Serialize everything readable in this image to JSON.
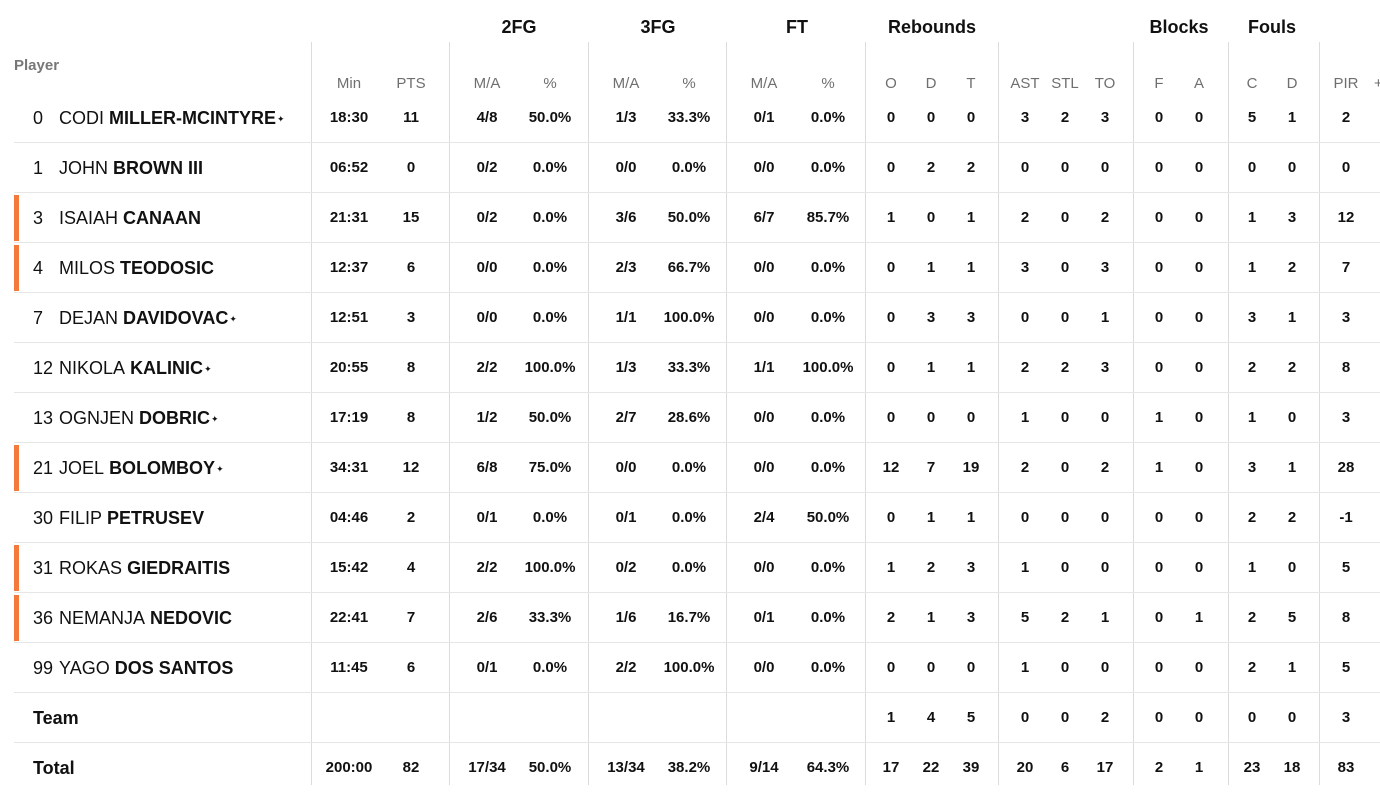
{
  "header": {
    "player_label": "Player",
    "groups": [
      "2FG",
      "3FG",
      "FT",
      "Rebounds",
      "Blocks",
      "Fouls"
    ],
    "columns": [
      "Min",
      "PTS",
      "M/A",
      "%",
      "M/A",
      "%",
      "M/A",
      "%",
      "O",
      "D",
      "T",
      "AST",
      "STL",
      "TO",
      "F",
      "A",
      "C",
      "D",
      "PIR"
    ],
    "more_indicator": "+"
  },
  "players": [
    {
      "num": "0",
      "first": "CODI",
      "last": "MILLER-MCINTYRE",
      "star": true,
      "bar": false,
      "stats": [
        "18:30",
        "11",
        "4/8",
        "50.0%",
        "1/3",
        "33.3%",
        "0/1",
        "0.0%",
        "0",
        "0",
        "0",
        "3",
        "2",
        "3",
        "0",
        "0",
        "5",
        "1",
        "2"
      ]
    },
    {
      "num": "1",
      "first": "JOHN",
      "last": "BROWN III",
      "star": false,
      "bar": false,
      "stats": [
        "06:52",
        "0",
        "0/2",
        "0.0%",
        "0/0",
        "0.0%",
        "0/0",
        "0.0%",
        "0",
        "2",
        "2",
        "0",
        "0",
        "0",
        "0",
        "0",
        "0",
        "0",
        "0"
      ]
    },
    {
      "num": "3",
      "first": "ISAIAH",
      "last": "CANAAN",
      "star": false,
      "bar": true,
      "stats": [
        "21:31",
        "15",
        "0/2",
        "0.0%",
        "3/6",
        "50.0%",
        "6/7",
        "85.7%",
        "1",
        "0",
        "1",
        "2",
        "0",
        "2",
        "0",
        "0",
        "1",
        "3",
        "12"
      ]
    },
    {
      "num": "4",
      "first": "MILOS",
      "last": "TEODOSIC",
      "star": false,
      "bar": true,
      "stats": [
        "12:37",
        "6",
        "0/0",
        "0.0%",
        "2/3",
        "66.7%",
        "0/0",
        "0.0%",
        "0",
        "1",
        "1",
        "3",
        "0",
        "3",
        "0",
        "0",
        "1",
        "2",
        "7"
      ]
    },
    {
      "num": "7",
      "first": "DEJAN",
      "last": "DAVIDOVAC",
      "star": true,
      "bar": false,
      "stats": [
        "12:51",
        "3",
        "0/0",
        "0.0%",
        "1/1",
        "100.0%",
        "0/0",
        "0.0%",
        "0",
        "3",
        "3",
        "0",
        "0",
        "1",
        "0",
        "0",
        "3",
        "1",
        "3"
      ]
    },
    {
      "num": "12",
      "first": "NIKOLA",
      "last": "KALINIC",
      "star": true,
      "bar": false,
      "stats": [
        "20:55",
        "8",
        "2/2",
        "100.0%",
        "1/3",
        "33.3%",
        "1/1",
        "100.0%",
        "0",
        "1",
        "1",
        "2",
        "2",
        "3",
        "0",
        "0",
        "2",
        "2",
        "8"
      ]
    },
    {
      "num": "13",
      "first": "OGNJEN",
      "last": "DOBRIC",
      "star": true,
      "bar": false,
      "stats": [
        "17:19",
        "8",
        "1/2",
        "50.0%",
        "2/7",
        "28.6%",
        "0/0",
        "0.0%",
        "0",
        "0",
        "0",
        "1",
        "0",
        "0",
        "1",
        "0",
        "1",
        "0",
        "3"
      ]
    },
    {
      "num": "21",
      "first": "JOEL",
      "last": "BOLOMBOY",
      "star": true,
      "bar": true,
      "stats": [
        "34:31",
        "12",
        "6/8",
        "75.0%",
        "0/0",
        "0.0%",
        "0/0",
        "0.0%",
        "12",
        "7",
        "19",
        "2",
        "0",
        "2",
        "1",
        "0",
        "3",
        "1",
        "28"
      ]
    },
    {
      "num": "30",
      "first": "FILIP",
      "last": "PETRUSEV",
      "star": false,
      "bar": false,
      "stats": [
        "04:46",
        "2",
        "0/1",
        "0.0%",
        "0/1",
        "0.0%",
        "2/4",
        "50.0%",
        "0",
        "1",
        "1",
        "0",
        "0",
        "0",
        "0",
        "0",
        "2",
        "2",
        "-1"
      ]
    },
    {
      "num": "31",
      "first": "ROKAS",
      "last": "GIEDRAITIS",
      "star": false,
      "bar": true,
      "stats": [
        "15:42",
        "4",
        "2/2",
        "100.0%",
        "0/2",
        "0.0%",
        "0/0",
        "0.0%",
        "1",
        "2",
        "3",
        "1",
        "0",
        "0",
        "0",
        "0",
        "1",
        "0",
        "5"
      ]
    },
    {
      "num": "36",
      "first": "NEMANJA",
      "last": "NEDOVIC",
      "star": false,
      "bar": true,
      "stats": [
        "22:41",
        "7",
        "2/6",
        "33.3%",
        "1/6",
        "16.7%",
        "0/1",
        "0.0%",
        "2",
        "1",
        "3",
        "5",
        "2",
        "1",
        "0",
        "1",
        "2",
        "5",
        "8"
      ]
    },
    {
      "num": "99",
      "first": "YAGO",
      "last": "DOS SANTOS",
      "star": false,
      "bar": false,
      "stats": [
        "11:45",
        "6",
        "0/1",
        "0.0%",
        "2/2",
        "100.0%",
        "0/0",
        "0.0%",
        "0",
        "0",
        "0",
        "1",
        "0",
        "0",
        "0",
        "0",
        "2",
        "1",
        "5"
      ]
    }
  ],
  "team": {
    "label": "Team",
    "stats": [
      "",
      "",
      "",
      "",
      "",
      "",
      "",
      "",
      "1",
      "4",
      "5",
      "0",
      "0",
      "2",
      "0",
      "0",
      "0",
      "0",
      "3"
    ]
  },
  "total": {
    "label": "Total",
    "stats": [
      "200:00",
      "82",
      "17/34",
      "50.0%",
      "13/34",
      "38.2%",
      "9/14",
      "64.3%",
      "17",
      "22",
      "39",
      "20",
      "6",
      "17",
      "2",
      "1",
      "23",
      "18",
      "83"
    ]
  },
  "colors": {
    "starter_bar": "#f47a3c",
    "header_text": "#6f6f6f",
    "divider": "#dcdcdc"
  }
}
